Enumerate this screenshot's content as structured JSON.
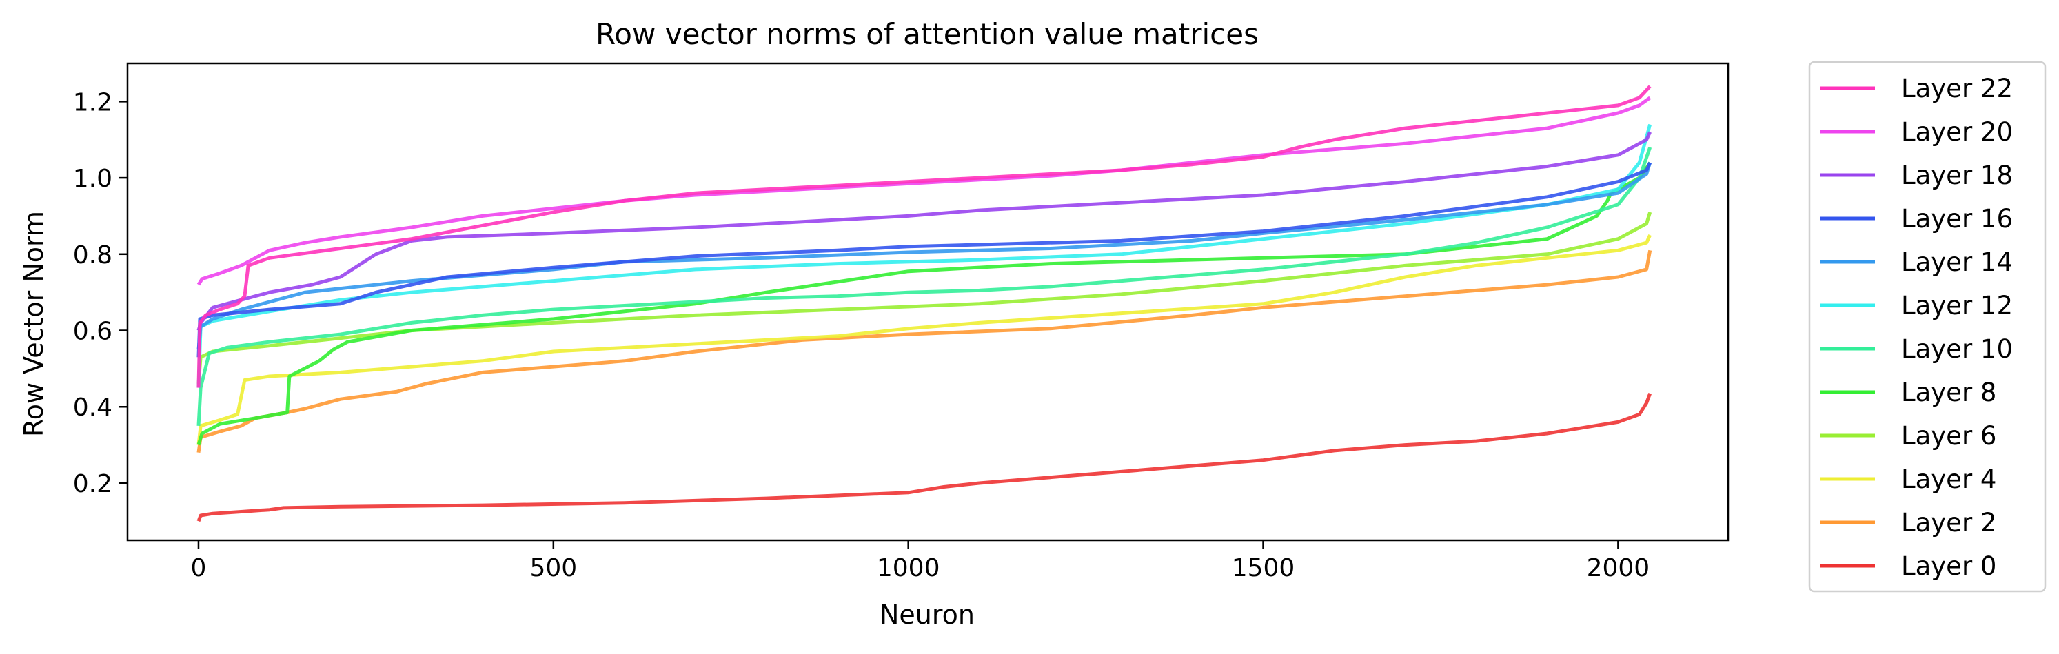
{
  "chart_data": {
    "type": "line",
    "title": "Row vector norms of attention value matrices",
    "xlabel": "Neuron",
    "ylabel": "Row Vector Norm",
    "xlim": [
      -100,
      2155
    ],
    "ylim": [
      0.05,
      1.3
    ],
    "x_ticks": [
      0,
      500,
      1000,
      1500,
      2000
    ],
    "y_ticks": [
      0.2,
      0.4,
      0.6,
      0.8,
      1.0,
      1.2
    ],
    "x_tick_labels": [
      "0",
      "500",
      "1000",
      "1500",
      "2000"
    ],
    "y_tick_labels": [
      "0.2",
      "0.4",
      "0.6",
      "0.8",
      "1.0",
      "1.2"
    ],
    "grid": false,
    "legend_position": "outside-right",
    "series": [
      {
        "name": "Layer 22",
        "color": "#ff33bb",
        "points": [
          [
            0,
            0.45
          ],
          [
            2,
            0.62
          ],
          [
            10,
            0.64
          ],
          [
            30,
            0.655
          ],
          [
            55,
            0.67
          ],
          [
            65,
            0.69
          ],
          [
            70,
            0.77
          ],
          [
            100,
            0.79
          ],
          [
            200,
            0.815
          ],
          [
            300,
            0.84
          ],
          [
            400,
            0.875
          ],
          [
            500,
            0.91
          ],
          [
            600,
            0.94
          ],
          [
            700,
            0.96
          ],
          [
            800,
            0.97
          ],
          [
            900,
            0.98
          ],
          [
            1000,
            0.99
          ],
          [
            1100,
            1.0
          ],
          [
            1200,
            1.01
          ],
          [
            1300,
            1.02
          ],
          [
            1400,
            1.035
          ],
          [
            1500,
            1.055
          ],
          [
            1550,
            1.08
          ],
          [
            1600,
            1.1
          ],
          [
            1700,
            1.13
          ],
          [
            1800,
            1.15
          ],
          [
            1900,
            1.17
          ],
          [
            2000,
            1.19
          ],
          [
            2030,
            1.21
          ],
          [
            2045,
            1.24
          ]
        ]
      },
      {
        "name": "Layer 20",
        "color": "#ee44ee",
        "points": [
          [
            0,
            0.72
          ],
          [
            5,
            0.735
          ],
          [
            30,
            0.75
          ],
          [
            60,
            0.77
          ],
          [
            100,
            0.81
          ],
          [
            150,
            0.83
          ],
          [
            200,
            0.845
          ],
          [
            300,
            0.87
          ],
          [
            400,
            0.9
          ],
          [
            500,
            0.92
          ],
          [
            600,
            0.94
          ],
          [
            700,
            0.955
          ],
          [
            800,
            0.965
          ],
          [
            900,
            0.975
          ],
          [
            1000,
            0.985
          ],
          [
            1100,
            0.995
          ],
          [
            1200,
            1.005
          ],
          [
            1300,
            1.02
          ],
          [
            1400,
            1.04
          ],
          [
            1500,
            1.06
          ],
          [
            1600,
            1.075
          ],
          [
            1700,
            1.09
          ],
          [
            1800,
            1.11
          ],
          [
            1900,
            1.13
          ],
          [
            2000,
            1.17
          ],
          [
            2030,
            1.19
          ],
          [
            2045,
            1.21
          ]
        ]
      },
      {
        "name": "Layer 18",
        "color": "#9944ee",
        "points": [
          [
            0,
            0.6
          ],
          [
            3,
            0.62
          ],
          [
            20,
            0.66
          ],
          [
            60,
            0.68
          ],
          [
            100,
            0.7
          ],
          [
            160,
            0.72
          ],
          [
            200,
            0.74
          ],
          [
            250,
            0.8
          ],
          [
            300,
            0.835
          ],
          [
            350,
            0.845
          ],
          [
            500,
            0.855
          ],
          [
            700,
            0.87
          ],
          [
            900,
            0.89
          ],
          [
            1000,
            0.9
          ],
          [
            1100,
            0.915
          ],
          [
            1300,
            0.935
          ],
          [
            1500,
            0.955
          ],
          [
            1700,
            0.99
          ],
          [
            1900,
            1.03
          ],
          [
            2000,
            1.06
          ],
          [
            2040,
            1.1
          ],
          [
            2045,
            1.12
          ]
        ]
      },
      {
        "name": "Layer 16",
        "color": "#3355ee",
        "points": [
          [
            0,
            0.53
          ],
          [
            2,
            0.63
          ],
          [
            20,
            0.64
          ],
          [
            100,
            0.655
          ],
          [
            200,
            0.67
          ],
          [
            250,
            0.7
          ],
          [
            350,
            0.74
          ],
          [
            500,
            0.765
          ],
          [
            700,
            0.795
          ],
          [
            900,
            0.81
          ],
          [
            1000,
            0.82
          ],
          [
            1100,
            0.825
          ],
          [
            1300,
            0.835
          ],
          [
            1500,
            0.86
          ],
          [
            1700,
            0.9
          ],
          [
            1900,
            0.95
          ],
          [
            2000,
            0.99
          ],
          [
            2040,
            1.02
          ],
          [
            2045,
            1.04
          ]
        ]
      },
      {
        "name": "Layer 14",
        "color": "#3399ee",
        "points": [
          [
            0,
            0.55
          ],
          [
            3,
            0.61
          ],
          [
            20,
            0.63
          ],
          [
            60,
            0.655
          ],
          [
            100,
            0.675
          ],
          [
            150,
            0.7
          ],
          [
            200,
            0.71
          ],
          [
            300,
            0.73
          ],
          [
            400,
            0.745
          ],
          [
            500,
            0.76
          ],
          [
            600,
            0.78
          ],
          [
            800,
            0.79
          ],
          [
            1000,
            0.805
          ],
          [
            1200,
            0.815
          ],
          [
            1400,
            0.835
          ],
          [
            1500,
            0.855
          ],
          [
            1700,
            0.89
          ],
          [
            1900,
            0.93
          ],
          [
            2000,
            0.96
          ],
          [
            2040,
            1.01
          ],
          [
            2045,
            1.04
          ]
        ]
      },
      {
        "name": "Layer 12",
        "color": "#33eeee",
        "points": [
          [
            0,
            0.45
          ],
          [
            3,
            0.61
          ],
          [
            20,
            0.625
          ],
          [
            100,
            0.65
          ],
          [
            200,
            0.68
          ],
          [
            300,
            0.7
          ],
          [
            400,
            0.715
          ],
          [
            500,
            0.73
          ],
          [
            600,
            0.745
          ],
          [
            700,
            0.76
          ],
          [
            900,
            0.775
          ],
          [
            1100,
            0.785
          ],
          [
            1300,
            0.8
          ],
          [
            1500,
            0.84
          ],
          [
            1700,
            0.88
          ],
          [
            1900,
            0.93
          ],
          [
            2000,
            0.97
          ],
          [
            2030,
            1.04
          ],
          [
            2045,
            1.14
          ]
        ]
      },
      {
        "name": "Layer 10",
        "color": "#33ee99",
        "points": [
          [
            0,
            0.35
          ],
          [
            3,
            0.45
          ],
          [
            15,
            0.54
          ],
          [
            40,
            0.555
          ],
          [
            100,
            0.57
          ],
          [
            200,
            0.59
          ],
          [
            300,
            0.62
          ],
          [
            400,
            0.64
          ],
          [
            500,
            0.655
          ],
          [
            600,
            0.665
          ],
          [
            700,
            0.675
          ],
          [
            800,
            0.685
          ],
          [
            900,
            0.69
          ],
          [
            1000,
            0.7
          ],
          [
            1100,
            0.705
          ],
          [
            1200,
            0.715
          ],
          [
            1300,
            0.73
          ],
          [
            1400,
            0.745
          ],
          [
            1500,
            0.76
          ],
          [
            1600,
            0.78
          ],
          [
            1700,
            0.8
          ],
          [
            1800,
            0.83
          ],
          [
            1900,
            0.87
          ],
          [
            2000,
            0.93
          ],
          [
            2030,
            1.0
          ],
          [
            2045,
            1.08
          ]
        ]
      },
      {
        "name": "Layer 8",
        "color": "#33ee33",
        "points": [
          [
            0,
            0.3
          ],
          [
            5,
            0.33
          ],
          [
            30,
            0.355
          ],
          [
            80,
            0.37
          ],
          [
            125,
            0.385
          ],
          [
            128,
            0.48
          ],
          [
            170,
            0.52
          ],
          [
            190,
            0.55
          ],
          [
            210,
            0.57
          ],
          [
            300,
            0.6
          ],
          [
            500,
            0.63
          ],
          [
            700,
            0.67
          ],
          [
            800,
            0.7
          ],
          [
            1000,
            0.755
          ],
          [
            1200,
            0.775
          ],
          [
            1500,
            0.79
          ],
          [
            1700,
            0.8
          ],
          [
            1900,
            0.84
          ],
          [
            1970,
            0.9
          ],
          [
            1985,
            0.94
          ],
          [
            1990,
            0.96
          ],
          [
            2030,
            1.0
          ],
          [
            2045,
            1.04
          ]
        ]
      },
      {
        "name": "Layer 6",
        "color": "#99ee33",
        "points": [
          [
            0,
            0.46
          ],
          [
            3,
            0.53
          ],
          [
            20,
            0.545
          ],
          [
            100,
            0.56
          ],
          [
            200,
            0.58
          ],
          [
            300,
            0.6
          ],
          [
            500,
            0.62
          ],
          [
            700,
            0.64
          ],
          [
            900,
            0.655
          ],
          [
            1100,
            0.67
          ],
          [
            1300,
            0.695
          ],
          [
            1500,
            0.73
          ],
          [
            1700,
            0.77
          ],
          [
            1900,
            0.8
          ],
          [
            2000,
            0.84
          ],
          [
            2040,
            0.88
          ],
          [
            2045,
            0.91
          ]
        ]
      },
      {
        "name": "Layer 4",
        "color": "#eeee33",
        "points": [
          [
            0,
            0.3
          ],
          [
            3,
            0.35
          ],
          [
            30,
            0.365
          ],
          [
            55,
            0.38
          ],
          [
            65,
            0.47
          ],
          [
            100,
            0.48
          ],
          [
            200,
            0.49
          ],
          [
            300,
            0.505
          ],
          [
            400,
            0.52
          ],
          [
            500,
            0.545
          ],
          [
            700,
            0.565
          ],
          [
            900,
            0.585
          ],
          [
            1000,
            0.605
          ],
          [
            1100,
            0.62
          ],
          [
            1300,
            0.645
          ],
          [
            1500,
            0.67
          ],
          [
            1600,
            0.7
          ],
          [
            1700,
            0.74
          ],
          [
            1800,
            0.77
          ],
          [
            1900,
            0.79
          ],
          [
            2000,
            0.81
          ],
          [
            2040,
            0.83
          ],
          [
            2045,
            0.85
          ]
        ]
      },
      {
        "name": "Layer 2",
        "color": "#ff9933",
        "points": [
          [
            0,
            0.28
          ],
          [
            3,
            0.32
          ],
          [
            30,
            0.335
          ],
          [
            60,
            0.35
          ],
          [
            80,
            0.37
          ],
          [
            125,
            0.385
          ],
          [
            150,
            0.395
          ],
          [
            200,
            0.42
          ],
          [
            280,
            0.44
          ],
          [
            320,
            0.46
          ],
          [
            400,
            0.49
          ],
          [
            600,
            0.52
          ],
          [
            700,
            0.545
          ],
          [
            850,
            0.575
          ],
          [
            1000,
            0.59
          ],
          [
            1200,
            0.605
          ],
          [
            1400,
            0.64
          ],
          [
            1500,
            0.66
          ],
          [
            1600,
            0.675
          ],
          [
            1700,
            0.69
          ],
          [
            1800,
            0.705
          ],
          [
            1900,
            0.72
          ],
          [
            2000,
            0.74
          ],
          [
            2040,
            0.76
          ],
          [
            2045,
            0.81
          ]
        ]
      },
      {
        "name": "Layer 0",
        "color": "#ee3333",
        "points": [
          [
            0,
            0.1
          ],
          [
            3,
            0.115
          ],
          [
            20,
            0.12
          ],
          [
            60,
            0.125
          ],
          [
            100,
            0.13
          ],
          [
            120,
            0.135
          ],
          [
            200,
            0.138
          ],
          [
            400,
            0.142
          ],
          [
            600,
            0.148
          ],
          [
            800,
            0.16
          ],
          [
            1000,
            0.175
          ],
          [
            1050,
            0.19
          ],
          [
            1100,
            0.2
          ],
          [
            1200,
            0.215
          ],
          [
            1300,
            0.23
          ],
          [
            1400,
            0.245
          ],
          [
            1500,
            0.26
          ],
          [
            1600,
            0.285
          ],
          [
            1700,
            0.3
          ],
          [
            1800,
            0.31
          ],
          [
            1900,
            0.33
          ],
          [
            1950,
            0.345
          ],
          [
            2000,
            0.36
          ],
          [
            2030,
            0.38
          ],
          [
            2040,
            0.41
          ],
          [
            2045,
            0.435
          ]
        ]
      }
    ]
  }
}
